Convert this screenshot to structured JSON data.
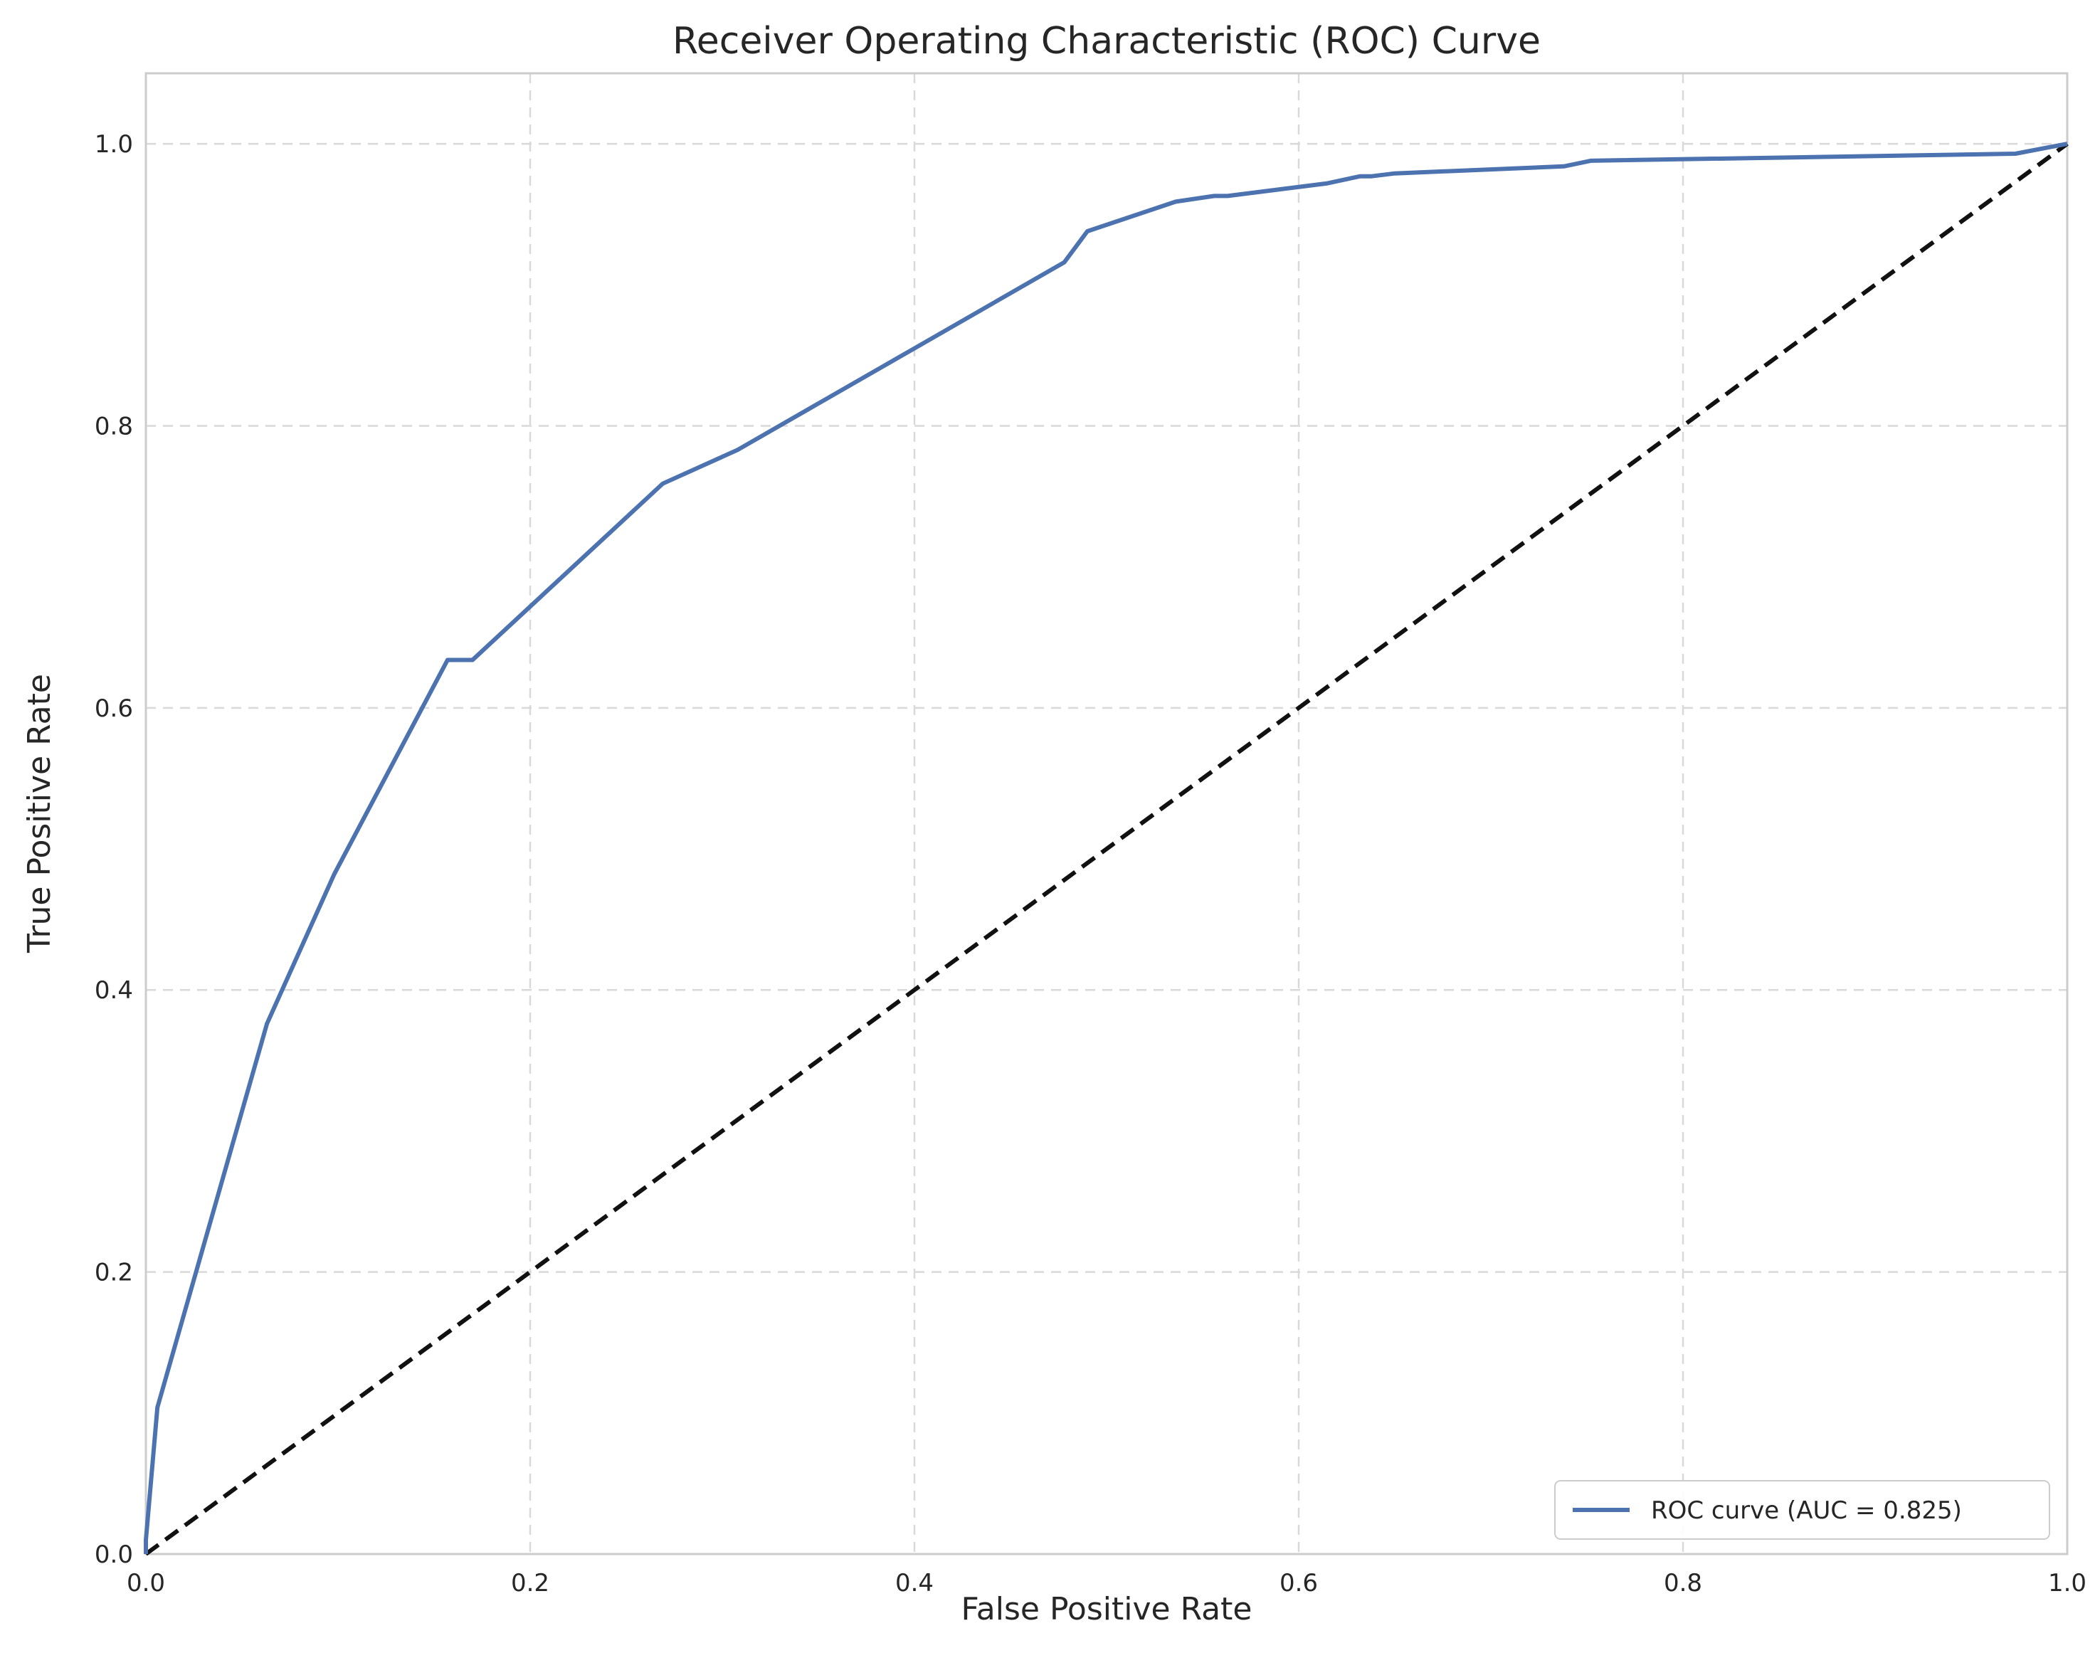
{
  "chart_data": {
    "type": "line",
    "title": "Receiver Operating Characteristic (ROC) Curve",
    "xlabel": "False Positive Rate",
    "ylabel": "True Positive Rate",
    "xlim": [
      0.0,
      1.0
    ],
    "ylim": [
      0.0,
      1.05
    ],
    "xticks": [
      "0.0",
      "0.2",
      "0.4",
      "0.6",
      "0.8",
      "1.0"
    ],
    "yticks": [
      "0.0",
      "0.2",
      "0.4",
      "0.6",
      "0.8",
      "1.0"
    ],
    "grid": true,
    "legend_position": "bottom-right",
    "series": [
      {
        "name": "ROC curve (AUC = 0.825)",
        "color": "#4c72b0",
        "style": "solid",
        "x": [
          0.0,
          0.0,
          0.006,
          0.063,
          0.098,
          0.157,
          0.17,
          0.269,
          0.308,
          0.478,
          0.49,
          0.536,
          0.556,
          0.563,
          0.615,
          0.632,
          0.638,
          0.65,
          0.738,
          0.752,
          0.973,
          1.0
        ],
        "y": [
          0.0,
          0.01,
          0.104,
          0.376,
          0.482,
          0.634,
          0.634,
          0.759,
          0.783,
          0.916,
          0.938,
          0.959,
          0.963,
          0.963,
          0.972,
          0.977,
          0.977,
          0.979,
          0.984,
          0.988,
          0.993,
          1.0
        ]
      },
      {
        "name": "",
        "color": "#111111",
        "style": "dashed",
        "x": [
          0.0,
          1.0
        ],
        "y": [
          0.0,
          1.0
        ]
      }
    ]
  }
}
